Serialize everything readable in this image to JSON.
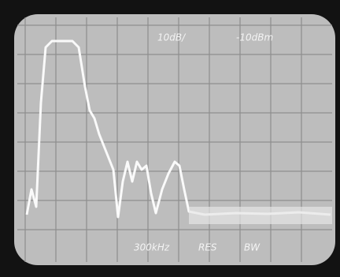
{
  "screen": {
    "top_labels": [
      "10dB/",
      "-10dBm"
    ],
    "bottom_labels": [
      "300kHz",
      "RES",
      "BW"
    ]
  }
}
